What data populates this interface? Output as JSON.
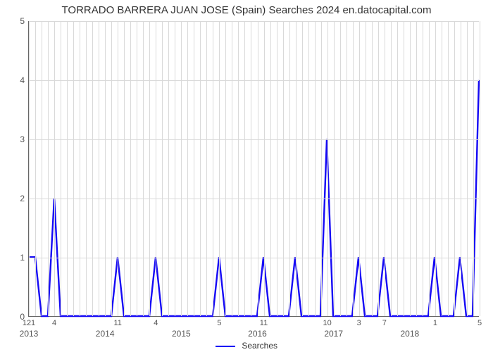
{
  "title": "TORRADO BARRERA JUAN JOSE (Spain) Searches 2024 en.datocapital.com",
  "chart": {
    "type": "line",
    "background_color": "#ffffff",
    "grid_color": "#d9d9d9",
    "axis_color": "#666666",
    "series_color": "#1509f5",
    "series_width": 2.4,
    "title_fontsize": 15,
    "tick_fontsize": 12,
    "ylim": [
      0,
      5
    ],
    "yticks": [
      0,
      1,
      2,
      3,
      4,
      5
    ],
    "n_points": 72,
    "x_year_labels": [
      {
        "idx": 0,
        "text": "2013"
      },
      {
        "idx": 12,
        "text": "2014"
      },
      {
        "idx": 24,
        "text": "2015"
      },
      {
        "idx": 36,
        "text": "2016"
      },
      {
        "idx": 48,
        "text": "2017"
      },
      {
        "idx": 60,
        "text": "2018"
      }
    ],
    "x_value_labels": [
      {
        "idx": 0,
        "text": "121"
      },
      {
        "idx": 4,
        "text": "4"
      },
      {
        "idx": 14,
        "text": "11"
      },
      {
        "idx": 20,
        "text": "4"
      },
      {
        "idx": 30,
        "text": "5"
      },
      {
        "idx": 37,
        "text": "11"
      },
      {
        "idx": 47,
        "text": "10"
      },
      {
        "idx": 52,
        "text": "3"
      },
      {
        "idx": 56,
        "text": "7"
      },
      {
        "idx": 64,
        "text": "1"
      },
      {
        "idx": 71,
        "text": "5"
      }
    ],
    "values": [
      1,
      1,
      0,
      0,
      2,
      0,
      0,
      0,
      0,
      0,
      0,
      0,
      0,
      0,
      1,
      0,
      0,
      0,
      0,
      0,
      1,
      0,
      0,
      0,
      0,
      0,
      0,
      0,
      0,
      0,
      1,
      0,
      0,
      0,
      0,
      0,
      0,
      1,
      0,
      0,
      0,
      0,
      1,
      0,
      0,
      0,
      0,
      3,
      0,
      0,
      0,
      0,
      1,
      0,
      0,
      0,
      1,
      0,
      0,
      0,
      0,
      0,
      0,
      0,
      1,
      0,
      0,
      0,
      1,
      0,
      0,
      4
    ],
    "legend_label": "Searches"
  }
}
